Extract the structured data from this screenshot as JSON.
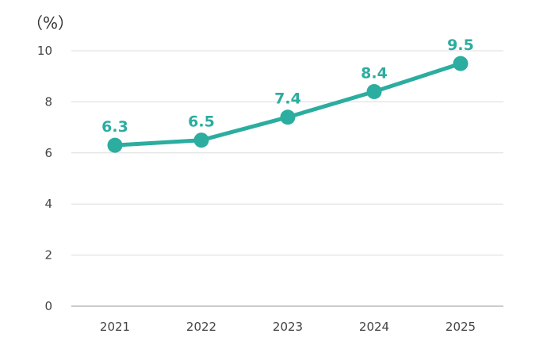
{
  "chart_data": {
    "type": "line",
    "unit_label": "（%）",
    "categories": [
      "2021",
      "2022",
      "2023",
      "2024",
      "2025"
    ],
    "series": [
      {
        "values": [
          6.3,
          6.5,
          7.4,
          8.4,
          9.5
        ],
        "data_labels": [
          "6.3",
          "6.5",
          "7.4",
          "8.4",
          "9.5"
        ],
        "color": "#2bada0"
      }
    ],
    "ylim": [
      0,
      10
    ],
    "yticks": [
      0,
      2,
      4,
      6,
      8,
      10
    ],
    "ytick_labels": [
      "0",
      "2",
      "4",
      "6",
      "8",
      "10"
    ],
    "grid": true,
    "grid_color": "#dcdcdc",
    "axis_color": "#999999"
  }
}
